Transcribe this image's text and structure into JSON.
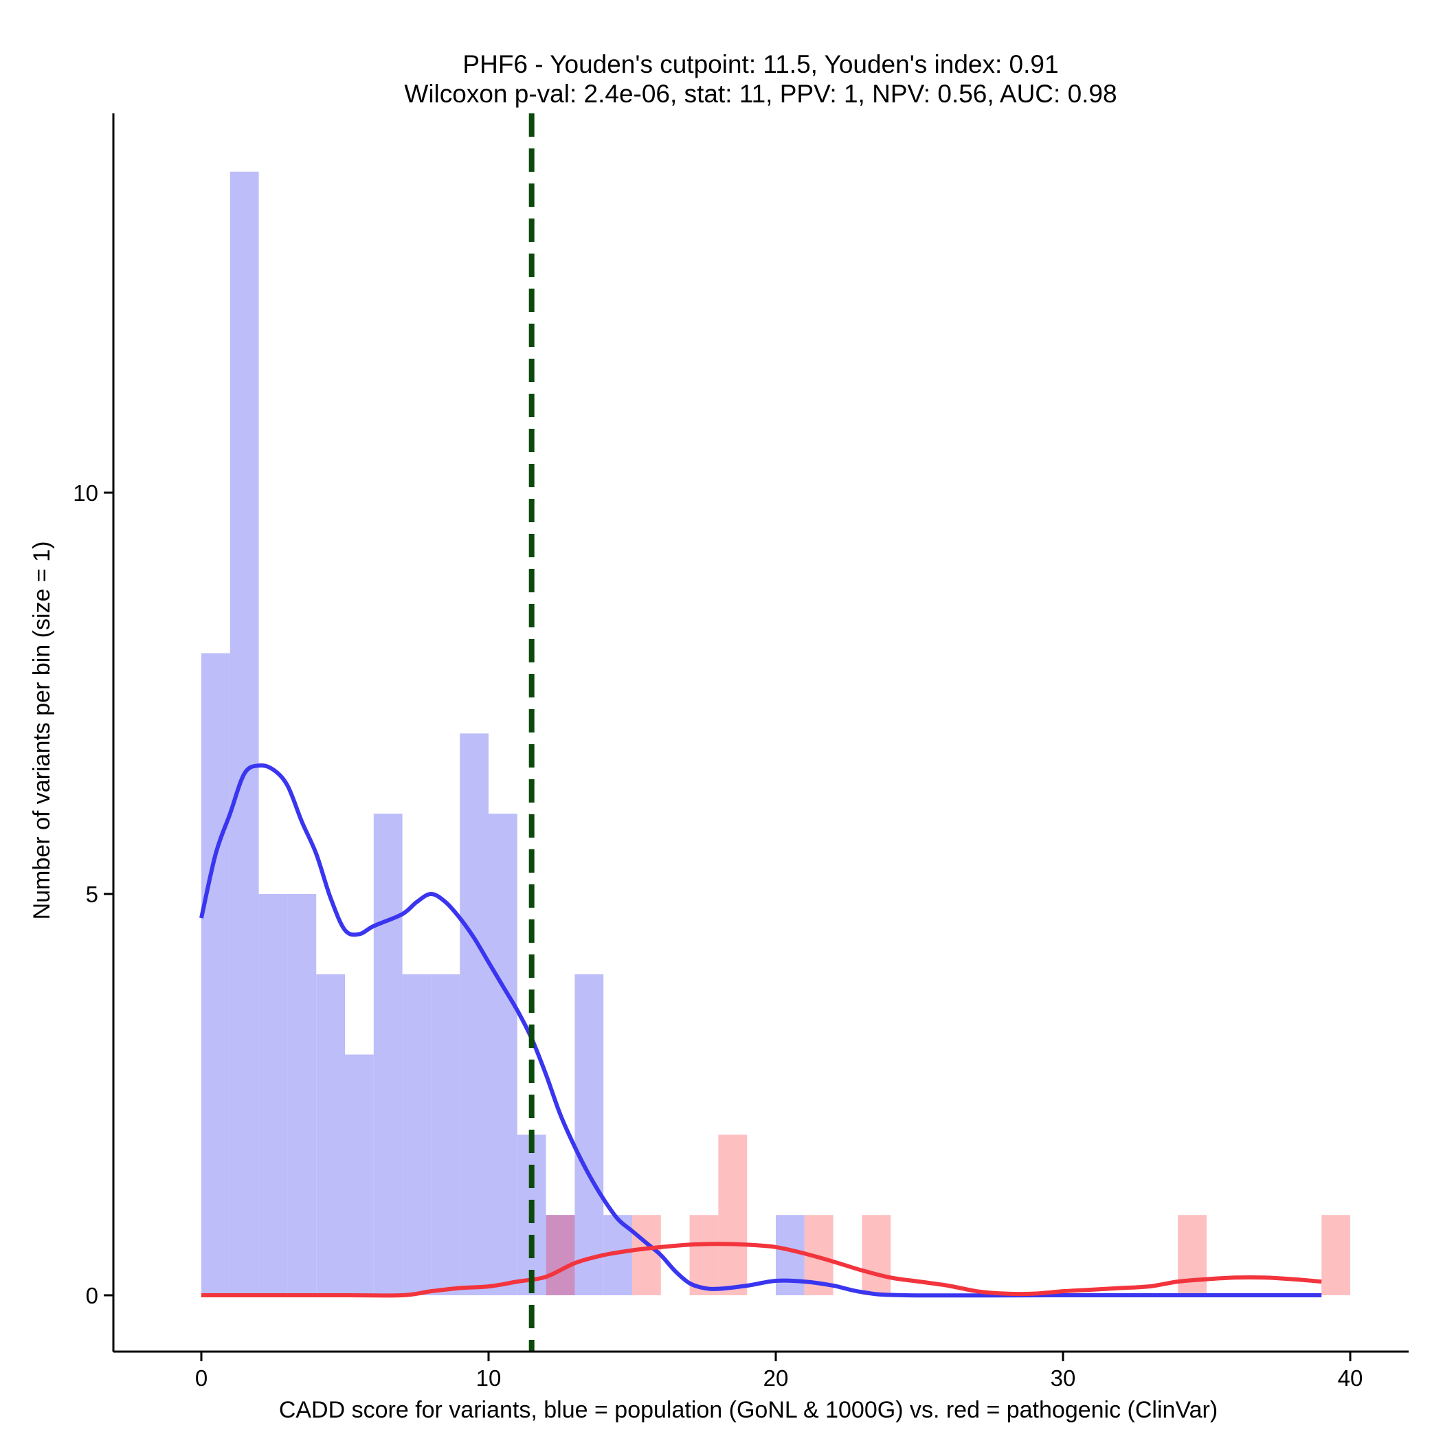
{
  "chart_data": {
    "type": "histogram",
    "title": "PHF6 - Youden's cutpoint: 11.5, Youden's index: 0.91",
    "subtitle": "Wilcoxon p-val: 2.4e-06, stat: 11, PPV: 1, NPV: 0.56, AUC: 0.98",
    "xlabel": "CADD score for variants, blue = population (GoNL & 1000G) vs. red = pathogenic (ClinVar)",
    "ylabel": "Number of variants per bin (size = 1)",
    "xlim": [
      -3,
      42
    ],
    "ylim": [
      -0.7,
      14.7
    ],
    "x_ticks": [
      0,
      10,
      20,
      30,
      40
    ],
    "y_ticks": [
      0,
      5,
      10
    ],
    "bin_size": 1,
    "cutpoint": 11.5,
    "colors": {
      "population_bar": "#bdbdfa",
      "pathogenic_bar": "#fdbfc0",
      "overlap_bar": "#cc8fc0",
      "population_line": "#3a35ef",
      "pathogenic_line": "#f2343d",
      "cutpoint_line": "#0c4a0c"
    },
    "series": [
      {
        "legend": "blue = population (GoNL & 1000G)",
        "bins": [
          {
            "x": 0,
            "count": 8
          },
          {
            "x": 1,
            "count": 14
          },
          {
            "x": 2,
            "count": 5
          },
          {
            "x": 3,
            "count": 5
          },
          {
            "x": 4,
            "count": 4
          },
          {
            "x": 5,
            "count": 3
          },
          {
            "x": 6,
            "count": 6
          },
          {
            "x": 7,
            "count": 4
          },
          {
            "x": 8,
            "count": 4
          },
          {
            "x": 9,
            "count": 7
          },
          {
            "x": 10,
            "count": 6
          },
          {
            "x": 11,
            "count": 2
          },
          {
            "x": 12,
            "count": 1
          },
          {
            "x": 13,
            "count": 4
          },
          {
            "x": 14,
            "count": 1
          },
          {
            "x": 20,
            "count": 1
          }
        ],
        "density_curve": [
          [
            0,
            4.7
          ],
          [
            0.5,
            5.5
          ],
          [
            1,
            6.0
          ],
          [
            1.5,
            6.5
          ],
          [
            2,
            6.6
          ],
          [
            2.5,
            6.55
          ],
          [
            3,
            6.35
          ],
          [
            3.5,
            5.9
          ],
          [
            4,
            5.5
          ],
          [
            4.5,
            4.95
          ],
          [
            5,
            4.55
          ],
          [
            5.5,
            4.5
          ],
          [
            6,
            4.6
          ],
          [
            7,
            4.75
          ],
          [
            7.5,
            4.9
          ],
          [
            8,
            5.0
          ],
          [
            8.5,
            4.9
          ],
          [
            9,
            4.7
          ],
          [
            9.5,
            4.45
          ],
          [
            10,
            4.15
          ],
          [
            10.5,
            3.85
          ],
          [
            11,
            3.55
          ],
          [
            11.5,
            3.2
          ],
          [
            12,
            2.75
          ],
          [
            12.5,
            2.25
          ],
          [
            13,
            1.85
          ],
          [
            13.5,
            1.5
          ],
          [
            14,
            1.2
          ],
          [
            14.5,
            0.95
          ],
          [
            15,
            0.8
          ],
          [
            15.5,
            0.65
          ],
          [
            16,
            0.5
          ],
          [
            16.5,
            0.3
          ],
          [
            17,
            0.15
          ],
          [
            17.5,
            0.09
          ],
          [
            18,
            0.08
          ],
          [
            19,
            0.12
          ],
          [
            20,
            0.18
          ],
          [
            21,
            0.17
          ],
          [
            22,
            0.12
          ],
          [
            23,
            0.04
          ],
          [
            24.5,
            0
          ],
          [
            30,
            0
          ],
          [
            39,
            0
          ]
        ]
      },
      {
        "legend": "red = pathogenic (ClinVar)",
        "bins": [
          {
            "x": 12,
            "count": 1
          },
          {
            "x": 15,
            "count": 1
          },
          {
            "x": 17,
            "count": 1
          },
          {
            "x": 18,
            "count": 2
          },
          {
            "x": 21,
            "count": 1
          },
          {
            "x": 23,
            "count": 1
          },
          {
            "x": 34,
            "count": 1
          },
          {
            "x": 39,
            "count": 1
          }
        ],
        "density_curve": [
          [
            0,
            0
          ],
          [
            5,
            0
          ],
          [
            7,
            0
          ],
          [
            8,
            0.05
          ],
          [
            9,
            0.09
          ],
          [
            10,
            0.11
          ],
          [
            11,
            0.17
          ],
          [
            12,
            0.23
          ],
          [
            13,
            0.4
          ],
          [
            14,
            0.5
          ],
          [
            15,
            0.56
          ],
          [
            16,
            0.6
          ],
          [
            17,
            0.63
          ],
          [
            18,
            0.64
          ],
          [
            19,
            0.63
          ],
          [
            20,
            0.6
          ],
          [
            21,
            0.52
          ],
          [
            22,
            0.42
          ],
          [
            23,
            0.31
          ],
          [
            24,
            0.22
          ],
          [
            25,
            0.17
          ],
          [
            26,
            0.12
          ],
          [
            27,
            0.05
          ],
          [
            28,
            0.02
          ],
          [
            29,
            0.02
          ],
          [
            30,
            0.05
          ],
          [
            31,
            0.07
          ],
          [
            32,
            0.09
          ],
          [
            33,
            0.11
          ],
          [
            34,
            0.17
          ],
          [
            35,
            0.2
          ],
          [
            36,
            0.22
          ],
          [
            37,
            0.22
          ],
          [
            38,
            0.2
          ],
          [
            39,
            0.17
          ]
        ]
      }
    ]
  }
}
